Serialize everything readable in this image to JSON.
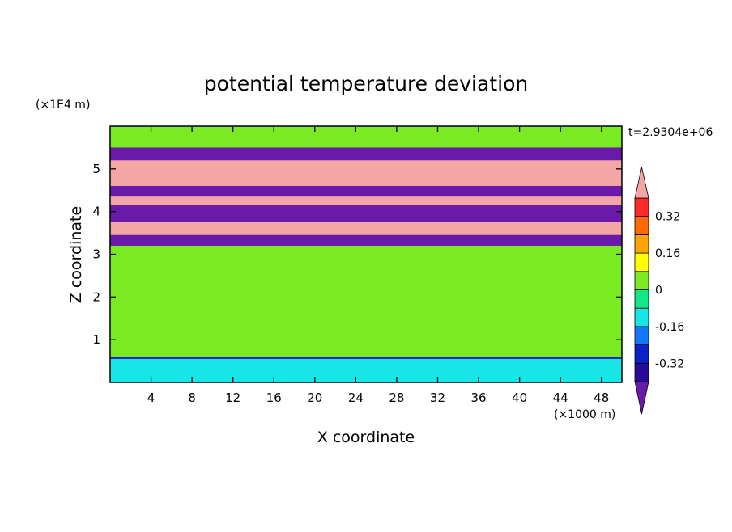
{
  "chart_data": {
    "type": "heatmap",
    "title": "potential temperature deviation",
    "xlabel": "X coordinate",
    "ylabel": "Z coordinate",
    "x_unit": "(×1000 m)",
    "y_unit": "(×1E4 m)",
    "time_label": "t=2.9304e+06",
    "xlim": [
      0,
      50
    ],
    "ylim": [
      0,
      6
    ],
    "x_ticks": [
      4,
      8,
      12,
      16,
      20,
      24,
      28,
      32,
      36,
      40,
      44,
      48
    ],
    "y_ticks": [
      1,
      2,
      3,
      4,
      5
    ],
    "colorbar": {
      "levels": [
        -0.4,
        -0.32,
        -0.24,
        -0.16,
        -0.08,
        0,
        0.08,
        0.16,
        0.24,
        0.32,
        0.4
      ],
      "tick_labels": [
        "0.32",
        "0.16",
        "0",
        "-0.16",
        "-0.32"
      ],
      "tick_values": [
        0.32,
        0.16,
        0,
        -0.16,
        -0.32
      ],
      "colors": [
        "#6a1aa8",
        "#2a0a9c",
        "#0a20c8",
        "#1478ff",
        "#16e6e6",
        "#14e68a",
        "#7aea22",
        "#ffff00",
        "#ffa500",
        "#ff6a00",
        "#ff2a2a",
        "#f4a6a6"
      ],
      "extend": "both"
    },
    "bands": [
      {
        "z_range": [
          5.9,
          6.0
        ],
        "value": 0.0
      },
      {
        "z_range": [
          5.5,
          5.9
        ],
        "value": 0.06
      },
      {
        "z_range": [
          5.2,
          5.5
        ],
        "value": -0.45
      },
      {
        "z_range": [
          5.1,
          5.2
        ],
        "value": 0.45
      },
      {
        "z_range": [
          4.6,
          5.1
        ],
        "value": 0.45
      },
      {
        "z_range": [
          4.35,
          4.6
        ],
        "value": -0.45
      },
      {
        "z_range": [
          4.15,
          4.35
        ],
        "value": 0.45
      },
      {
        "z_range": [
          3.75,
          4.15
        ],
        "value": -0.45
      },
      {
        "z_range": [
          3.45,
          3.75
        ],
        "value": 0.45
      },
      {
        "z_range": [
          3.2,
          3.45
        ],
        "value": -0.45
      },
      {
        "z_range": [
          2.6,
          3.2
        ],
        "value": 0.05
      },
      {
        "z_range": [
          2.0,
          2.6
        ],
        "value": 0.0
      },
      {
        "z_range": [
          0.6,
          2.0
        ],
        "value": 0.05
      },
      {
        "z_range": [
          0.55,
          0.6
        ],
        "value": -0.3
      },
      {
        "z_range": [
          0.0,
          0.55
        ],
        "value": -0.12
      }
    ]
  }
}
